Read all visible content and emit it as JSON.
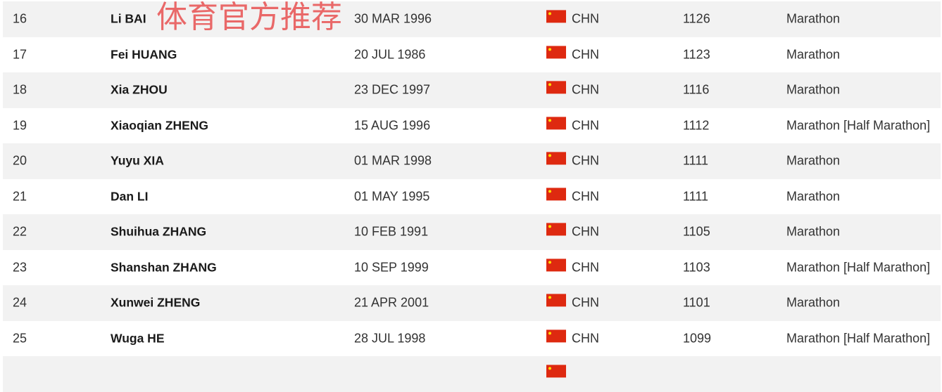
{
  "watermark": "体育官方推荐",
  "colors": {
    "flag": "#de2910",
    "row_alt": "#f2f2f2",
    "watermark": "#e85050"
  },
  "rows": [
    {
      "rank": "16",
      "name": "Li BAI",
      "dob": "30 MAR 1996",
      "country": "CHN",
      "points": "1126",
      "event": "Marathon"
    },
    {
      "rank": "17",
      "name": "Fei HUANG",
      "dob": "20 JUL 1986",
      "country": "CHN",
      "points": "1123",
      "event": "Marathon"
    },
    {
      "rank": "18",
      "name": "Xia ZHOU",
      "dob": "23 DEC 1997",
      "country": "CHN",
      "points": "1116",
      "event": "Marathon"
    },
    {
      "rank": "19",
      "name": "Xiaoqian ZHENG",
      "dob": "15 AUG 1996",
      "country": "CHN",
      "points": "1112",
      "event": "Marathon [Half Marathon]"
    },
    {
      "rank": "20",
      "name": "Yuyu XIA",
      "dob": "01 MAR 1998",
      "country": "CHN",
      "points": "1111",
      "event": "Marathon"
    },
    {
      "rank": "21",
      "name": "Dan LI",
      "dob": "01 MAY 1995",
      "country": "CHN",
      "points": "1111",
      "event": "Marathon"
    },
    {
      "rank": "22",
      "name": "Shuihua ZHANG",
      "dob": "10 FEB 1991",
      "country": "CHN",
      "points": "1105",
      "event": "Marathon"
    },
    {
      "rank": "23",
      "name": "Shanshan ZHANG",
      "dob": "10 SEP 1999",
      "country": "CHN",
      "points": "1103",
      "event": "Marathon [Half Marathon]"
    },
    {
      "rank": "24",
      "name": "Xunwei ZHENG",
      "dob": "21 APR 2001",
      "country": "CHN",
      "points": "1101",
      "event": "Marathon"
    },
    {
      "rank": "25",
      "name": "Wuga HE",
      "dob": "28 JUL 1998",
      "country": "CHN",
      "points": "1099",
      "event": "Marathon [Half Marathon]"
    },
    {
      "rank": "",
      "name": "",
      "dob": "",
      "country": "",
      "points": "",
      "event": ""
    }
  ]
}
